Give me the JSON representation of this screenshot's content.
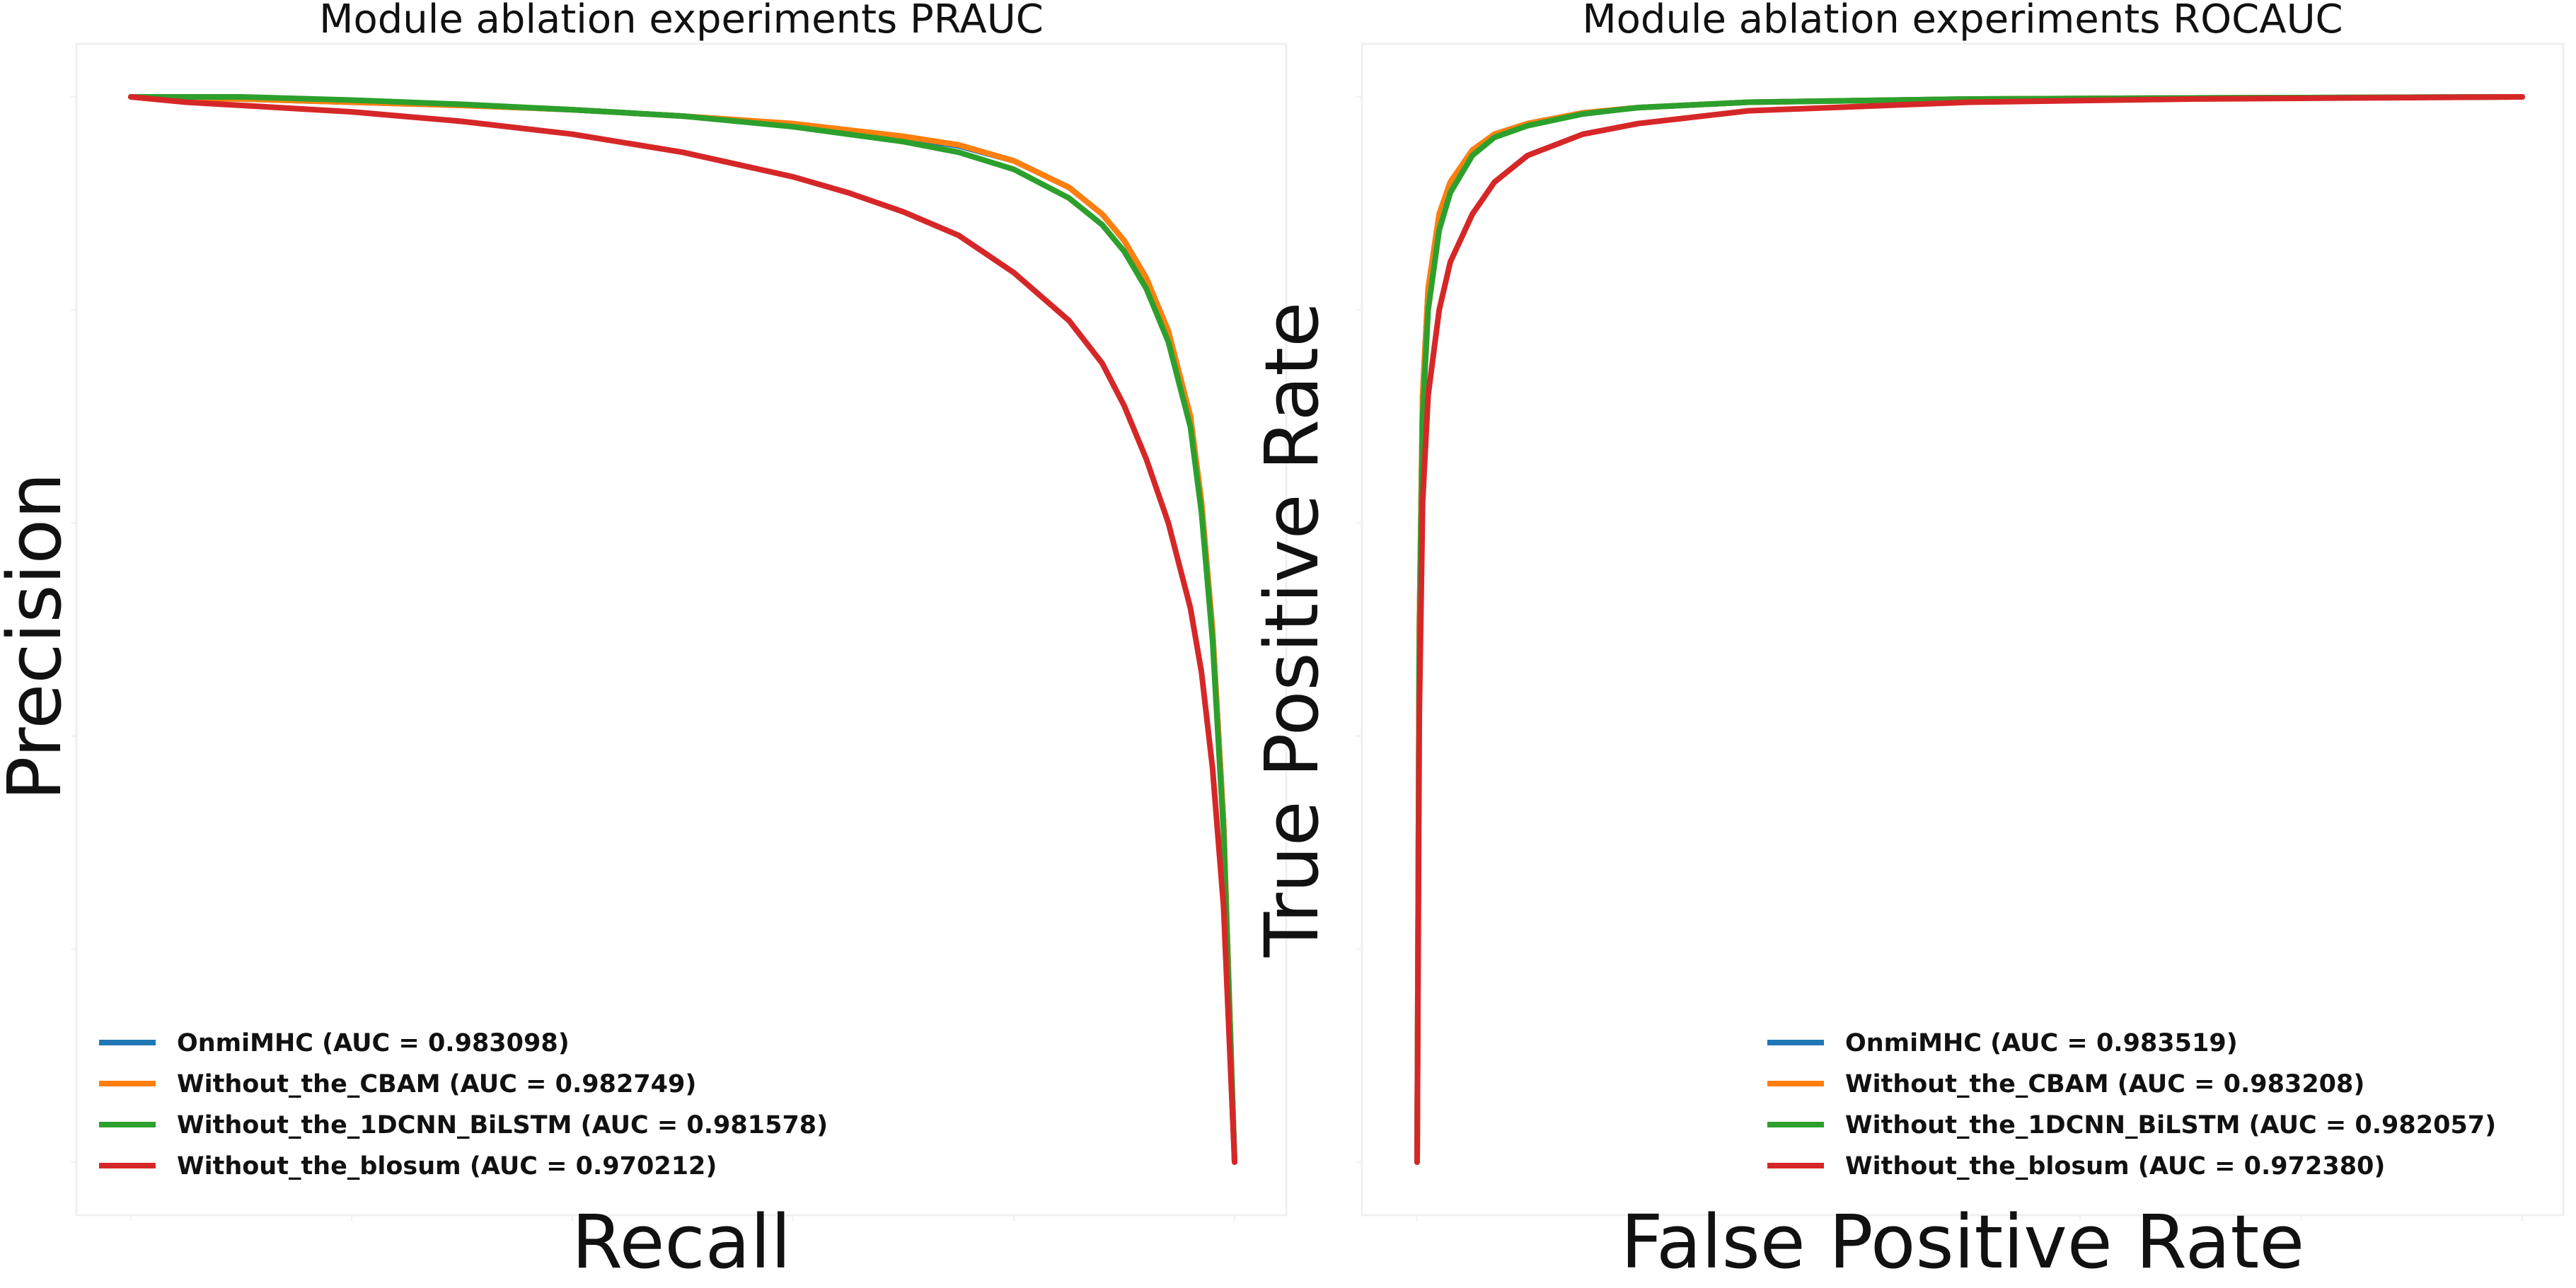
{
  "chart_data": [
    {
      "type": "line",
      "title": "Module ablation experiments PRAUC",
      "xlabel": "Recall",
      "ylabel": "Precision",
      "xlim": [
        0,
        1
      ],
      "ylim": [
        0,
        1
      ],
      "tick_labels_visible": false,
      "grid": false,
      "legend_position": "lower-left",
      "series": [
        {
          "name": "OnmiMHC (AUC = 0.983098)",
          "color": "#1f77b4",
          "x": [
            0,
            0.1,
            0.2,
            0.3,
            0.4,
            0.5,
            0.6,
            0.7,
            0.75,
            0.8,
            0.85,
            0.88,
            0.9,
            0.92,
            0.94,
            0.96,
            0.97,
            0.98,
            0.99,
            1.0
          ],
          "y": [
            1.0,
            0.998,
            0.995,
            0.992,
            0.988,
            0.982,
            0.974,
            0.962,
            0.954,
            0.94,
            0.915,
            0.89,
            0.865,
            0.83,
            0.78,
            0.7,
            0.62,
            0.5,
            0.32,
            0.0
          ]
        },
        {
          "name": "Without_the_CBAM (AUC = 0.982749)",
          "color": "#ff7f0e",
          "x": [
            0,
            0.1,
            0.2,
            0.3,
            0.4,
            0.5,
            0.6,
            0.7,
            0.75,
            0.8,
            0.85,
            0.88,
            0.9,
            0.92,
            0.94,
            0.96,
            0.97,
            0.98,
            0.99,
            1.0
          ],
          "y": [
            1.0,
            0.998,
            0.995,
            0.992,
            0.988,
            0.982,
            0.975,
            0.963,
            0.955,
            0.94,
            0.915,
            0.89,
            0.865,
            0.83,
            0.78,
            0.7,
            0.62,
            0.5,
            0.32,
            0.0
          ]
        },
        {
          "name": "Without_the_1DCNN_BiLSTM (AUC = 0.981578)",
          "color": "#2ca02c",
          "x": [
            0,
            0.1,
            0.2,
            0.3,
            0.4,
            0.5,
            0.6,
            0.7,
            0.75,
            0.8,
            0.85,
            0.88,
            0.9,
            0.92,
            0.94,
            0.96,
            0.97,
            0.98,
            0.99,
            1.0
          ],
          "y": [
            1.0,
            1.0,
            0.997,
            0.993,
            0.988,
            0.982,
            0.972,
            0.958,
            0.948,
            0.932,
            0.905,
            0.88,
            0.855,
            0.82,
            0.77,
            0.69,
            0.61,
            0.49,
            0.31,
            0.0
          ]
        },
        {
          "name": "Without_the_blosum (AUC = 0.970212)",
          "color": "#d62728",
          "x": [
            0,
            0.05,
            0.1,
            0.2,
            0.3,
            0.4,
            0.5,
            0.6,
            0.65,
            0.7,
            0.75,
            0.8,
            0.85,
            0.88,
            0.9,
            0.92,
            0.94,
            0.96,
            0.97,
            0.98,
            0.99,
            1.0
          ],
          "y": [
            1.0,
            0.995,
            0.992,
            0.986,
            0.977,
            0.965,
            0.948,
            0.925,
            0.91,
            0.892,
            0.87,
            0.835,
            0.79,
            0.75,
            0.71,
            0.66,
            0.6,
            0.52,
            0.46,
            0.37,
            0.24,
            0.0
          ]
        }
      ]
    },
    {
      "type": "line",
      "title": "Module ablation experiments ROCAUC",
      "xlabel": "False Positive Rate",
      "ylabel": "True Positive Rate",
      "xlim": [
        0,
        1
      ],
      "ylim": [
        0,
        1
      ],
      "tick_labels_visible": false,
      "grid": false,
      "legend_position": "lower-right",
      "series": [
        {
          "name": "OnmiMHC (AUC = 0.983519)",
          "color": "#1f77b4",
          "x": [
            0,
            0.002,
            0.005,
            0.01,
            0.02,
            0.03,
            0.05,
            0.07,
            0.1,
            0.15,
            0.2,
            0.3,
            0.5,
            0.7,
            1.0
          ],
          "y": [
            0,
            0.5,
            0.72,
            0.82,
            0.89,
            0.92,
            0.95,
            0.965,
            0.975,
            0.985,
            0.99,
            0.995,
            0.998,
            0.999,
            1.0
          ]
        },
        {
          "name": "Without_the_CBAM (AUC = 0.983208)",
          "color": "#ff7f0e",
          "x": [
            0,
            0.002,
            0.005,
            0.01,
            0.02,
            0.03,
            0.05,
            0.07,
            0.1,
            0.15,
            0.2,
            0.3,
            0.5,
            0.7,
            1.0
          ],
          "y": [
            0,
            0.5,
            0.72,
            0.82,
            0.89,
            0.92,
            0.95,
            0.965,
            0.975,
            0.985,
            0.99,
            0.995,
            0.998,
            0.999,
            1.0
          ]
        },
        {
          "name": "Without_the_1DCNN_BiLSTM (AUC = 0.982057)",
          "color": "#2ca02c",
          "x": [
            0,
            0.002,
            0.005,
            0.01,
            0.02,
            0.03,
            0.05,
            0.07,
            0.1,
            0.15,
            0.2,
            0.3,
            0.5,
            0.7,
            1.0
          ],
          "y": [
            0,
            0.48,
            0.7,
            0.8,
            0.875,
            0.91,
            0.945,
            0.962,
            0.973,
            0.984,
            0.99,
            0.995,
            0.998,
            0.999,
            1.0
          ]
        },
        {
          "name": "Without_the_blosum (AUC = 0.972380)",
          "color": "#d62728",
          "x": [
            0,
            0.002,
            0.005,
            0.01,
            0.02,
            0.03,
            0.05,
            0.07,
            0.1,
            0.15,
            0.2,
            0.3,
            0.5,
            0.7,
            1.0
          ],
          "y": [
            0,
            0.42,
            0.62,
            0.72,
            0.8,
            0.845,
            0.89,
            0.92,
            0.945,
            0.965,
            0.975,
            0.987,
            0.995,
            0.998,
            1.0
          ]
        }
      ]
    }
  ]
}
